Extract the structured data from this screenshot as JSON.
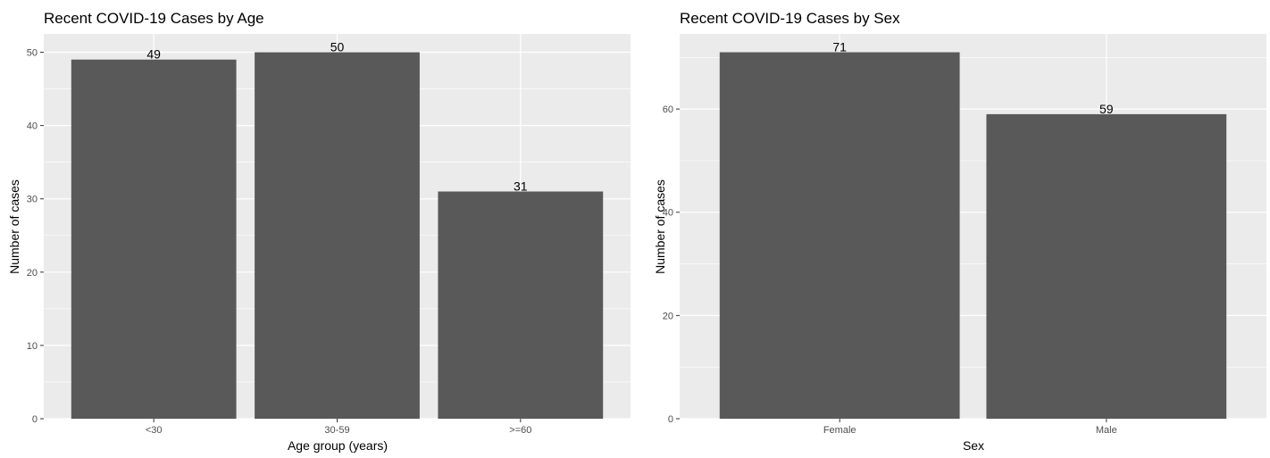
{
  "colors": {
    "panel_background": "#ebebeb",
    "grid_major": "#ffffff",
    "bar_fill": "#595959",
    "tick_text": "#4d4d4d"
  },
  "chart_data": [
    {
      "type": "bar",
      "title": "Recent COVID-19 Cases by Age",
      "xlabel": "Age group (years)",
      "ylabel": "Number of cases",
      "categories": [
        "<30",
        "30-59",
        ">=60"
      ],
      "values": [
        49,
        50,
        31
      ],
      "data_labels": [
        "49",
        "50",
        "31"
      ],
      "ylim": [
        0,
        52.5
      ],
      "yticks": [
        0,
        10,
        20,
        30,
        40,
        50
      ],
      "grid": true,
      "legend": "none"
    },
    {
      "type": "bar",
      "title": "Recent COVID-19 Cases by Sex",
      "xlabel": "Sex",
      "ylabel": "Number of cases",
      "categories": [
        "Female",
        "Male"
      ],
      "values": [
        71,
        59
      ],
      "data_labels": [
        "71",
        "59"
      ],
      "ylim": [
        0,
        74.55
      ],
      "yticks": [
        0,
        20,
        40,
        60
      ],
      "grid": true,
      "legend": "none"
    }
  ]
}
